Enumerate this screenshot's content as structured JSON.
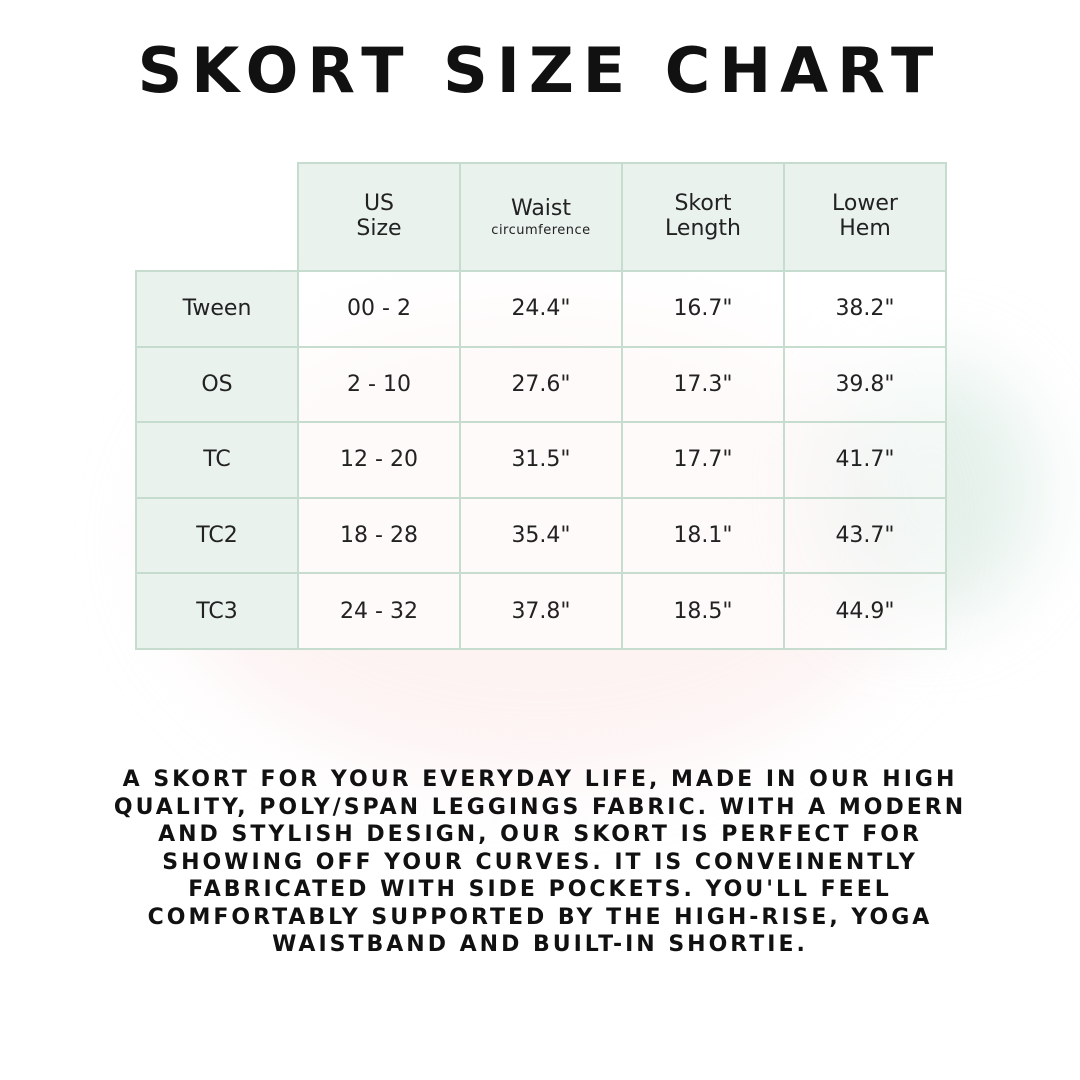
{
  "title": "SKORT SIZE CHART",
  "table": {
    "headers": [
      {
        "line1": "US",
        "line2": "Size",
        "sub": ""
      },
      {
        "line1": "Waist",
        "line2": "",
        "sub": "circumference"
      },
      {
        "line1": "Skort",
        "line2": "Length",
        "sub": ""
      },
      {
        "line1": "Lower",
        "line2": "Hem",
        "sub": ""
      }
    ],
    "rows": [
      {
        "label": "Tween",
        "cells": [
          "00 - 2",
          "24.4\"",
          "16.7\"",
          "38.2\""
        ]
      },
      {
        "label": "OS",
        "cells": [
          "2 - 10",
          "27.6\"",
          "17.3\"",
          "39.8\""
        ]
      },
      {
        "label": "TC",
        "cells": [
          "12 - 20",
          "31.5\"",
          "17.7\"",
          "41.7\""
        ]
      },
      {
        "label": "TC2",
        "cells": [
          "18 - 28",
          "35.4\"",
          "18.1\"",
          "43.7\""
        ]
      },
      {
        "label": "TC3",
        "cells": [
          "24 - 32",
          "37.8\"",
          "18.5\"",
          "44.9\""
        ]
      }
    ]
  },
  "description": [
    "A SKORT FOR YOUR EVERYDAY LIFE, MADE IN OUR HIGH",
    "QUALITY, POLY/SPAN LEGGINGS FABRIC. WITH A MODERN",
    "AND STYLISH DESIGN, OUR SKORT IS PERFECT FOR",
    "SHOWING OFF YOUR CURVES. IT IS CONVEINENTLY",
    "FABRICATED WITH SIDE POCKETS. YOU'LL FEEL",
    "COMFORTABLY SUPPORTED BY THE HIGH-RISE, YOGA",
    "WAISTBAND AND BUILT-IN SHORTIE."
  ],
  "colors": {
    "border": "#c5dccf",
    "header_bg": "#e9f2ed",
    "text": "#111111"
  }
}
